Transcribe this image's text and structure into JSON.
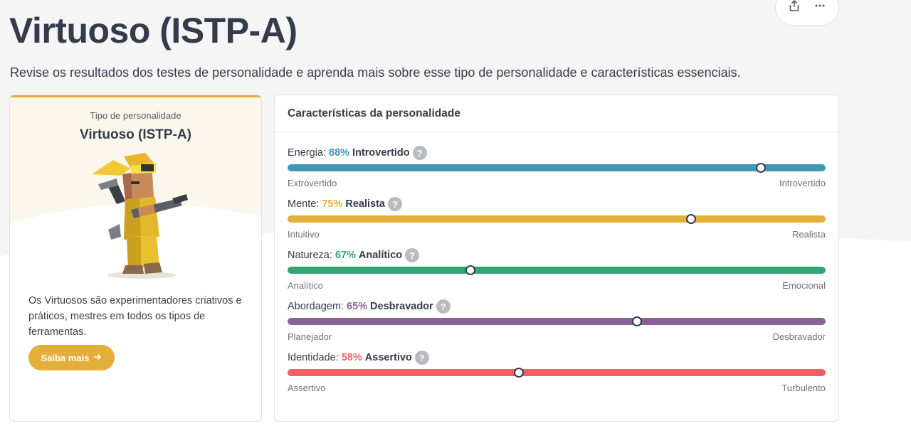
{
  "header": {
    "title": "Virtuoso (ISTP-A)",
    "subtitle": "Revise os resultados dos testes de personalidade e aprenda mais sobre esse tipo de personalidade e características essenciais.",
    "actions": [
      {
        "icon": "share-icon"
      },
      {
        "icon": "more-icon"
      }
    ]
  },
  "type_card": {
    "label": "Tipo de personalidade",
    "name": "Virtuoso (ISTP-A)",
    "description": "Os Virtuosos são experimentadores criativos e práticos, mestres em todos os tipos de ferramentas.",
    "button_label": "Saiba mais",
    "button_icon": "arrow-right-icon",
    "accent": "#e4ae3a"
  },
  "traits": {
    "title": "Características da personalidade",
    "items": [
      {
        "name": "Energia:",
        "percent": "88%",
        "result": "Introvertido",
        "left": "Extrovertido",
        "right": "Introvertido",
        "position": 0.88,
        "color": "#4298b4"
      },
      {
        "name": "Mente:",
        "percent": "75%",
        "result": "Realista",
        "left": "Intuitivo",
        "right": "Realista",
        "position": 0.75,
        "color": "#e4ae3a"
      },
      {
        "name": "Natureza:",
        "percent": "67%",
        "result": "Analítico",
        "left": "Analítico",
        "right": "Emocional",
        "position": 0.34,
        "color": "#33a474"
      },
      {
        "name": "Abordagem:",
        "percent": "65%",
        "result": "Desbravador",
        "left": "Planejador",
        "right": "Desbravador",
        "position": 0.65,
        "color": "#88619a"
      },
      {
        "name": "Identidade:",
        "percent": "58%",
        "result": "Assertivo",
        "left": "Assertivo",
        "right": "Turbulento",
        "position": 0.43,
        "color": "#f25e62"
      }
    ]
  }
}
